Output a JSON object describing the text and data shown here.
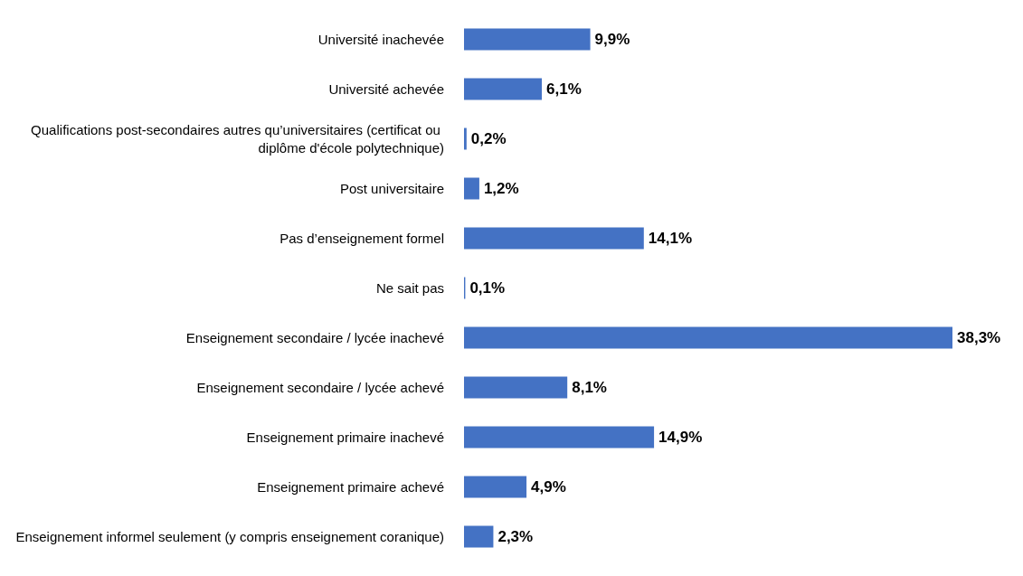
{
  "chart_data": {
    "type": "bar",
    "orientation": "horizontal",
    "color": "#4472c4",
    "categories": [
      "Université inachevée",
      "Université achevée",
      "Qualifications post-secondaires autres qu’universitaires (certificat ou diplôme d'école polytechnique)",
      "Post universitaire",
      "Pas d’enseignement formel",
      "Ne sait pas",
      "Enseignement secondaire / lycée inachevé",
      "Enseignement secondaire / lycée achevé",
      "Enseignement primaire inachevé",
      "Enseignement primaire achevé",
      "Enseignement informel seulement (y compris enseignement coranique)"
    ],
    "values": [
      9.9,
      6.1,
      0.2,
      1.2,
      14.1,
      0.1,
      38.3,
      8.1,
      14.9,
      4.9,
      2.3
    ],
    "value_labels": [
      "9,9%",
      "6,1%",
      "0,2%",
      "1,2%",
      "14,1%",
      "0,1%",
      "38,3%",
      "8,1%",
      "14,9%",
      "4,9%",
      "2,3%"
    ]
  }
}
